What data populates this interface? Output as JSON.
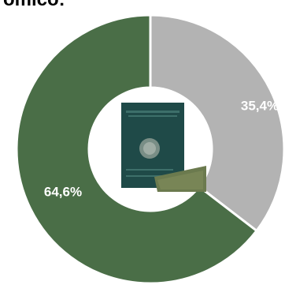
{
  "title_fragment": "omico:",
  "chart_data": {
    "type": "pie",
    "style": "donut",
    "slices": [
      {
        "label": "64,6%",
        "value": 64.6,
        "color": "#4a6e47"
      },
      {
        "label": "35,4%",
        "value": 35.4,
        "color": "#b3b3b3"
      }
    ],
    "center_image": "passport-document-icon",
    "colors": {
      "green": "#4a6e47",
      "gray": "#b3b3b3",
      "passport_cover": "#1f4a48",
      "paper": "#6b7a4e"
    }
  }
}
